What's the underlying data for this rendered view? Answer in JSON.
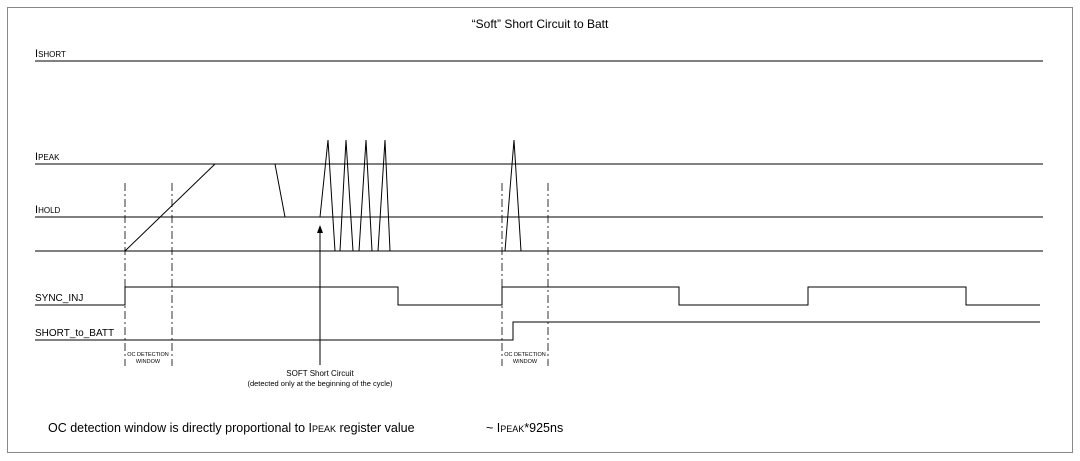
{
  "title": "“Soft” Short Circuit to Batt",
  "levels": [
    {
      "main": "I",
      "sub": "SHORT"
    },
    {
      "main": "I",
      "sub": "PEAK"
    },
    {
      "main": "I",
      "sub": "HOLD"
    }
  ],
  "signals": [
    "SYNC_INJ",
    "SHORT_to_BATT"
  ],
  "windows": [
    {
      "line1": "OC DETECTION",
      "line2": "WINDOW"
    },
    {
      "line1": "OC DETECTION",
      "line2": "WINDOW"
    }
  ],
  "annotation": {
    "line1": "SOFT Short Circuit",
    "line2": "(detected only at the beginning of the cycle)"
  },
  "footer": {
    "part1": "OC detection window is directly proportional to ",
    "i1": "I",
    "sub1": "PEAK",
    "part2": " register value",
    "part3": "~ ",
    "i2": "I",
    "sub2": "PEAK",
    "part4": "*925ns"
  }
}
